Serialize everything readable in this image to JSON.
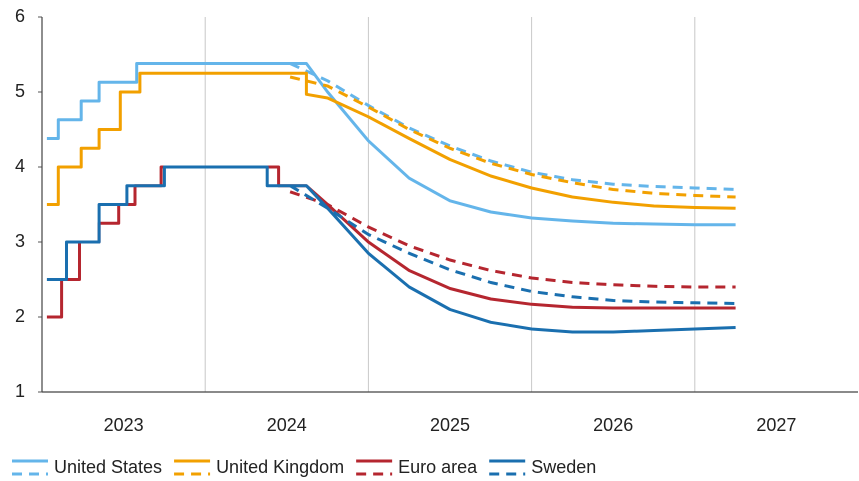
{
  "chart_data": {
    "type": "line",
    "xlim": [
      2023,
      2028
    ],
    "ylim": [
      1,
      6
    ],
    "yticks": [
      1,
      2,
      3,
      4,
      5,
      6
    ],
    "xticks": [
      {
        "value": 2023.5,
        "label": "2023"
      },
      {
        "value": 2024.5,
        "label": "2024"
      },
      {
        "value": 2025.5,
        "label": "2025"
      },
      {
        "value": 2026.5,
        "label": "2026"
      },
      {
        "value": 2027.5,
        "label": "2027"
      }
    ],
    "xgrid": [
      2024,
      2025,
      2026,
      2027
    ],
    "legend": "bottom",
    "series": [
      {
        "name": "United States",
        "color": "#64b5ea",
        "dashed": false,
        "x": [
          2023.03,
          2023.1,
          2023.1,
          2023.24,
          2023.24,
          2023.35,
          2023.35,
          2023.58,
          2023.58,
          2024.62,
          2024.75,
          2025.0,
          2025.25,
          2025.5,
          2025.75,
          2026.0,
          2026.25,
          2026.5,
          2026.75,
          2027.0,
          2027.25
        ],
        "values": [
          4.38,
          4.38,
          4.63,
          4.63,
          4.88,
          4.88,
          5.13,
          5.13,
          5.38,
          5.38,
          5.0,
          4.35,
          3.85,
          3.55,
          3.4,
          3.32,
          3.28,
          3.25,
          3.24,
          3.23,
          3.23
        ]
      },
      {
        "color": "#64b5ea",
        "dashed": true,
        "x": [
          2024.52,
          2024.75,
          2025.0,
          2025.25,
          2025.5,
          2025.75,
          2026.0,
          2026.25,
          2026.5,
          2026.75,
          2027.0,
          2027.25
        ],
        "values": [
          5.38,
          5.15,
          4.82,
          4.52,
          4.28,
          4.08,
          3.93,
          3.83,
          3.77,
          3.74,
          3.72,
          3.7
        ]
      },
      {
        "name": "United Kingdom",
        "color": "#f2a000",
        "dashed": false,
        "x": [
          2023.03,
          2023.1,
          2023.1,
          2023.24,
          2023.24,
          2023.35,
          2023.35,
          2023.48,
          2023.48,
          2023.6,
          2023.6,
          2024.62,
          2024.62,
          2024.75,
          2025.0,
          2025.25,
          2025.5,
          2025.75,
          2026.0,
          2026.25,
          2026.5,
          2026.75,
          2027.0,
          2027.25
        ],
        "values": [
          3.5,
          3.5,
          4.0,
          4.0,
          4.25,
          4.25,
          4.5,
          4.5,
          5.0,
          5.0,
          5.25,
          5.25,
          4.97,
          4.92,
          4.67,
          4.38,
          4.1,
          3.88,
          3.72,
          3.6,
          3.53,
          3.48,
          3.46,
          3.45
        ]
      },
      {
        "color": "#f2a000",
        "dashed": true,
        "x": [
          2024.52,
          2024.75,
          2025.0,
          2025.25,
          2025.5,
          2025.75,
          2026.0,
          2026.25,
          2026.5,
          2026.75,
          2027.0,
          2027.25
        ],
        "values": [
          5.2,
          5.08,
          4.8,
          4.5,
          4.25,
          4.05,
          3.9,
          3.79,
          3.7,
          3.65,
          3.62,
          3.6
        ]
      },
      {
        "name": "Euro area",
        "color": "#b5262f",
        "dashed": false,
        "x": [
          2023.03,
          2023.12,
          2023.12,
          2023.23,
          2023.23,
          2023.35,
          2023.35,
          2023.47,
          2023.47,
          2023.57,
          2023.57,
          2023.73,
          2023.73,
          2024.45,
          2024.45,
          2024.62,
          2024.75,
          2025.0,
          2025.25,
          2025.5,
          2025.75,
          2026.0,
          2026.25,
          2026.5,
          2026.75,
          2027.0,
          2027.25
        ],
        "values": [
          2.0,
          2.0,
          2.5,
          2.5,
          3.0,
          3.0,
          3.25,
          3.25,
          3.5,
          3.5,
          3.75,
          3.75,
          4.0,
          4.0,
          3.75,
          3.75,
          3.5,
          3.0,
          2.62,
          2.38,
          2.24,
          2.17,
          2.13,
          2.12,
          2.12,
          2.12,
          2.12
        ]
      },
      {
        "color": "#b5262f",
        "dashed": true,
        "x": [
          2024.52,
          2024.75,
          2025.0,
          2025.25,
          2025.5,
          2025.75,
          2026.0,
          2026.25,
          2026.5,
          2026.75,
          2027.0,
          2027.25
        ],
        "values": [
          3.67,
          3.5,
          3.2,
          2.95,
          2.76,
          2.62,
          2.52,
          2.46,
          2.43,
          2.41,
          2.4,
          2.4
        ]
      },
      {
        "name": "Sweden",
        "color": "#1a6faf",
        "dashed": false,
        "x": [
          2023.03,
          2023.15,
          2023.15,
          2023.35,
          2023.35,
          2023.52,
          2023.52,
          2023.75,
          2023.75,
          2024.38,
          2024.38,
          2024.62,
          2024.75,
          2025.0,
          2025.25,
          2025.5,
          2025.75,
          2026.0,
          2026.25,
          2026.5,
          2026.75,
          2027.0,
          2027.25
        ],
        "values": [
          2.5,
          2.5,
          3.0,
          3.0,
          3.5,
          3.5,
          3.75,
          3.75,
          4.0,
          4.0,
          3.75,
          3.75,
          3.45,
          2.85,
          2.4,
          2.1,
          1.93,
          1.84,
          1.8,
          1.8,
          1.82,
          1.84,
          1.86
        ]
      },
      {
        "color": "#1a6faf",
        "dashed": true,
        "x": [
          2024.52,
          2024.75,
          2025.0,
          2025.25,
          2025.5,
          2025.75,
          2026.0,
          2026.25,
          2026.5,
          2026.75,
          2027.0,
          2027.25
        ],
        "values": [
          3.75,
          3.45,
          3.1,
          2.85,
          2.63,
          2.46,
          2.34,
          2.27,
          2.22,
          2.2,
          2.19,
          2.18
        ]
      }
    ]
  }
}
